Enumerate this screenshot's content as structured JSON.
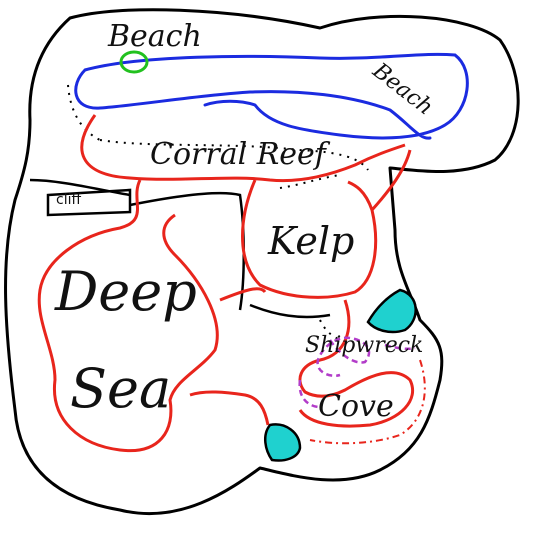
{
  "map": {
    "labels": {
      "beach_top": "Beach",
      "beach_right": "Beach",
      "coral_reef": "Corral Reef",
      "cliff": "cliff",
      "kelp": "Kelp",
      "deep": "Deep",
      "sea": "Sea",
      "shipwreck": "Shipwreck",
      "cove": "Cove"
    },
    "colors": {
      "coastline": "#000000",
      "region_border": "#e8251c",
      "beach_path": "#1b2be0",
      "marker_ring": "#22c11f",
      "shipwreck_outline": "#b23cc9",
      "rock": "#1fd1cf"
    }
  }
}
